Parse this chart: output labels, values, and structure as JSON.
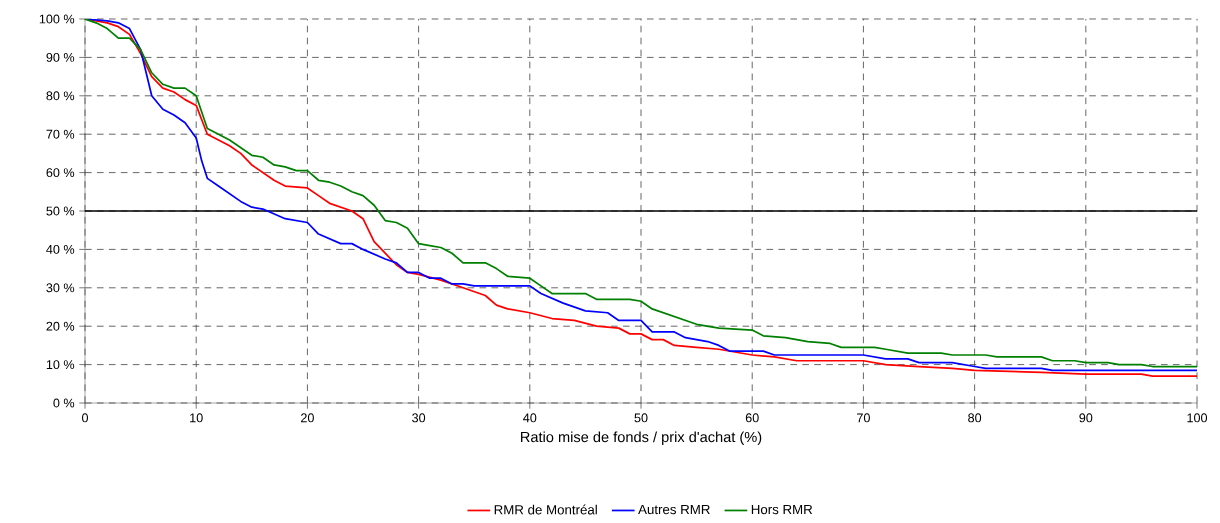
{
  "chart_data": {
    "type": "line",
    "xlabel": "Ratio mise de fonds / prix d'achat (%)",
    "xlim": [
      0,
      100
    ],
    "xticks": [
      0,
      10,
      20,
      30,
      40,
      50,
      60,
      70,
      80,
      90,
      100
    ],
    "ylim": [
      0,
      100
    ],
    "yticks": [
      {
        "value": 0,
        "label": "0 %"
      },
      {
        "value": 10,
        "label": "10 %"
      },
      {
        "value": 20,
        "label": "20 %"
      },
      {
        "value": 30,
        "label": "30 %"
      },
      {
        "value": 40,
        "label": "40 %"
      },
      {
        "value": 50,
        "label": "50 %"
      },
      {
        "value": 60,
        "label": "60 %"
      },
      {
        "value": 70,
        "label": "70 %"
      },
      {
        "value": 80,
        "label": "80 %"
      },
      {
        "value": 90,
        "label": "90 %"
      },
      {
        "value": 100,
        "label": "100 %"
      }
    ],
    "grid": true,
    "legend": "bottom",
    "marker": "none",
    "line_style": "solid",
    "ref_lines": [
      {
        "axis": "y",
        "value": 50,
        "color": "#000000"
      }
    ],
    "series": [
      {
        "name": "RMR de Montréal",
        "color": "#ff0000",
        "x": [
          0,
          2,
          3,
          4,
          5,
          6,
          7,
          8,
          9,
          10,
          11,
          12,
          13,
          14,
          15,
          17,
          18,
          20,
          21,
          22,
          24,
          25,
          26,
          27,
          28,
          29,
          30,
          32,
          34,
          36,
          37,
          38,
          40,
          42,
          44,
          46,
          48,
          49,
          50,
          51,
          52,
          53,
          55,
          57,
          60,
          62,
          64,
          70,
          72,
          75,
          78,
          80,
          86,
          90,
          95,
          96,
          100
        ],
        "values": [
          100,
          99,
          98,
          96,
          91,
          85,
          82,
          81,
          79,
          77.5,
          70,
          68.5,
          67,
          65,
          62,
          58,
          56.5,
          56,
          54,
          52,
          50,
          48,
          42,
          39,
          36,
          34,
          33.5,
          32,
          30,
          28,
          25.5,
          24.5,
          23.5,
          22,
          21.5,
          20,
          19.5,
          18,
          18,
          16.5,
          16.5,
          15,
          14.5,
          14,
          12.5,
          12,
          11,
          11,
          10,
          9.5,
          9,
          8.5,
          8,
          7.5,
          7.5,
          7,
          7
        ]
      },
      {
        "name": "Autres RMR",
        "color": "#0000ff",
        "x": [
          0,
          2,
          3,
          4,
          5,
          5.5,
          6,
          7,
          8,
          9,
          10,
          10.5,
          11,
          12,
          14,
          15,
          16,
          18,
          20,
          21,
          23,
          24,
          25,
          27,
          28,
          29,
          30,
          31,
          32,
          33,
          34,
          35,
          40,
          41,
          43,
          45,
          47,
          48,
          50,
          51,
          53,
          54,
          56,
          57,
          58,
          61,
          62,
          70,
          72,
          74,
          75,
          78,
          80,
          81,
          86,
          87,
          100
        ],
        "values": [
          100,
          99.5,
          99,
          97.5,
          92,
          86,
          80,
          76.5,
          75,
          73,
          69,
          63,
          58.5,
          56.5,
          52.5,
          51,
          50.5,
          48,
          47,
          44,
          41.5,
          41.5,
          40,
          37.5,
          36.5,
          34,
          34,
          32.5,
          32.5,
          31,
          31,
          30.5,
          30.5,
          28.5,
          26,
          24,
          23.5,
          21.5,
          21.5,
          18.5,
          18.5,
          17,
          16,
          15,
          13.5,
          13.5,
          12.5,
          12.5,
          11.5,
          11.5,
          10.5,
          10.5,
          9.5,
          9,
          9,
          8.5,
          8.5
        ]
      },
      {
        "name": "Hors RMR",
        "color": "#008000",
        "x": [
          0,
          1,
          2,
          3,
          4,
          5,
          6,
          7,
          8,
          9,
          10,
          11,
          12,
          13,
          15,
          16,
          17,
          18,
          19,
          20,
          21,
          22,
          23,
          24,
          25,
          26,
          27,
          28,
          29,
          30,
          31,
          32,
          33,
          34,
          36,
          37,
          38,
          40,
          41,
          42,
          45,
          46,
          49,
          50,
          51,
          53,
          55,
          57,
          60,
          61,
          63,
          65,
          67,
          68,
          71,
          72,
          74,
          77,
          78,
          81,
          82,
          86,
          87,
          89,
          90,
          92,
          93,
          95,
          96,
          100
        ],
        "values": [
          100,
          99,
          97.5,
          95,
          95,
          92,
          86,
          83,
          82,
          82,
          80,
          71.5,
          70,
          68.5,
          64.5,
          64,
          62,
          61.5,
          60.5,
          60.5,
          58,
          57.5,
          56.5,
          55,
          54,
          51.5,
          47.5,
          47,
          45.5,
          41.5,
          41,
          40.5,
          39,
          36.5,
          36.5,
          35,
          33,
          32.5,
          30.5,
          28.5,
          28.5,
          27,
          27,
          26.5,
          24.5,
          22.5,
          20.5,
          19.5,
          19,
          17.5,
          17,
          16,
          15.5,
          14.5,
          14.5,
          14,
          13,
          13,
          12.5,
          12.5,
          12,
          12,
          11,
          11,
          10.5,
          10.5,
          10,
          10,
          9.5,
          9.5
        ]
      }
    ]
  }
}
